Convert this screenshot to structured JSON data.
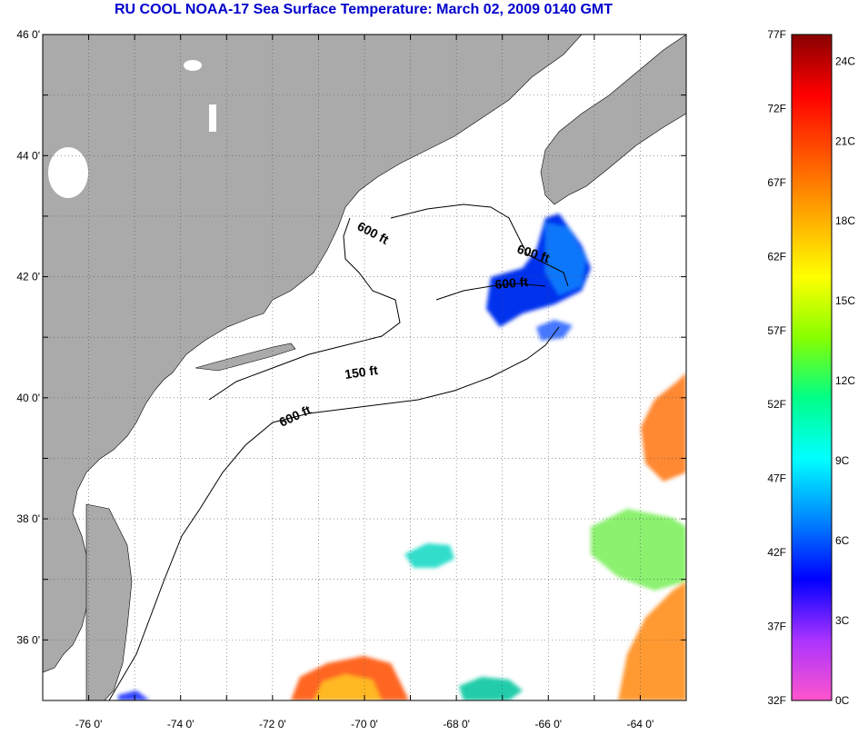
{
  "title": "RU COOL  NOAA-17  Sea Surface Temperature:  March 02, 2009 0140 GMT",
  "map": {
    "lat_ticks": [
      "46 0'",
      "44 0'",
      "42 0'",
      "40 0'",
      "38 0'",
      "36 0'"
    ],
    "lon_ticks": [
      "-76 0'",
      "-74 0'",
      "-72 0'",
      "-70 0'",
      "-68 0'",
      "-66 0'",
      "-64 0'"
    ],
    "lat_values": [
      46,
      44,
      42,
      40,
      38,
      36
    ],
    "lon_values": [
      -76,
      -74,
      -72,
      -70,
      -68,
      -66,
      -64
    ],
    "lat_range": [
      35,
      46
    ],
    "lon_range": [
      -77,
      -63
    ],
    "contour_labels": [
      "600 ft",
      "600 ft",
      "600 ft",
      "150 ft",
      "600 ft"
    ],
    "colors": {
      "land": "#aaaaaa",
      "ocean": "#ffffff",
      "grid": "#555555"
    }
  },
  "colorbar": {
    "f_labels": [
      "77F",
      "72F",
      "67F",
      "62F",
      "57F",
      "52F",
      "47F",
      "42F",
      "37F",
      "32F"
    ],
    "c_labels": [
      "24C",
      "21C",
      "18C",
      "15C",
      "12C",
      "9C",
      "6C",
      "3C",
      "0C"
    ],
    "f_values": [
      77,
      72,
      67,
      62,
      57,
      52,
      47,
      42,
      37,
      32
    ],
    "c_values": [
      24,
      21,
      18,
      15,
      12,
      9,
      6,
      3,
      0
    ],
    "range_f": [
      32,
      77
    ],
    "gradient": [
      "#ff55cc",
      "#aa33ff",
      "#0000ff",
      "#0088ff",
      "#00ffff",
      "#00ff88",
      "#88ff00",
      "#ffff00",
      "#ffaa00",
      "#ff5500",
      "#ff0000",
      "#880000"
    ]
  }
}
